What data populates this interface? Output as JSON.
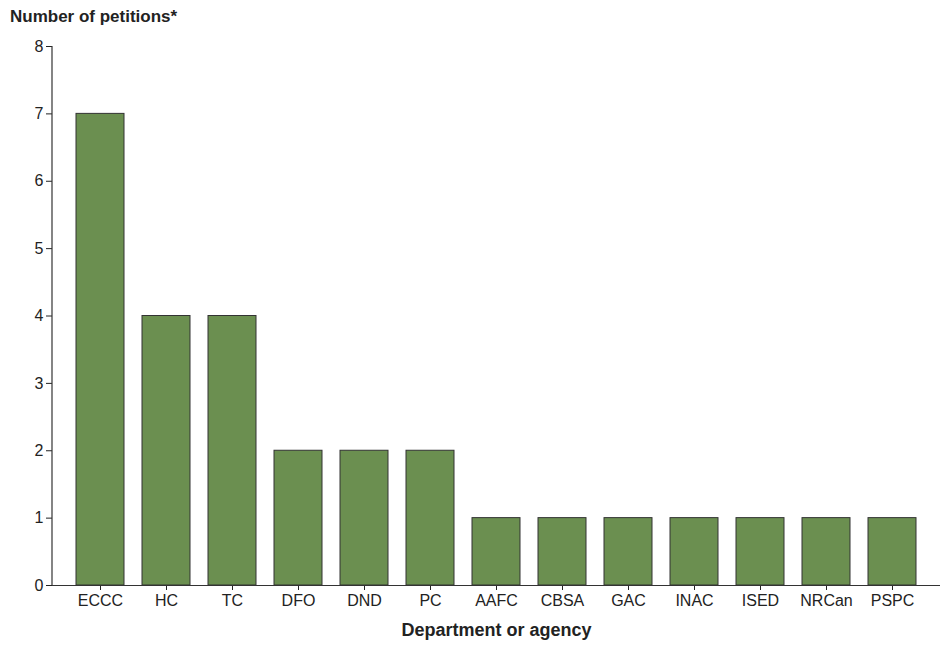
{
  "chart_data": {
    "type": "bar",
    "y_label": "Number of petitions*",
    "x_label": "Department or agency",
    "categories": [
      "ECCC",
      "HC",
      "TC",
      "DFO",
      "DND",
      "PC",
      "AAFC",
      "CBSA",
      "GAC",
      "INAC",
      "ISED",
      "NRCan",
      "PSPC"
    ],
    "values": [
      7,
      4,
      4,
      2,
      2,
      2,
      1,
      1,
      1,
      1,
      1,
      1,
      1
    ],
    "color": "#6b8f50",
    "ylim": [
      0,
      8
    ],
    "yticks": [
      0,
      1,
      2,
      3,
      4,
      5,
      6,
      7,
      8
    ],
    "grid": false
  }
}
